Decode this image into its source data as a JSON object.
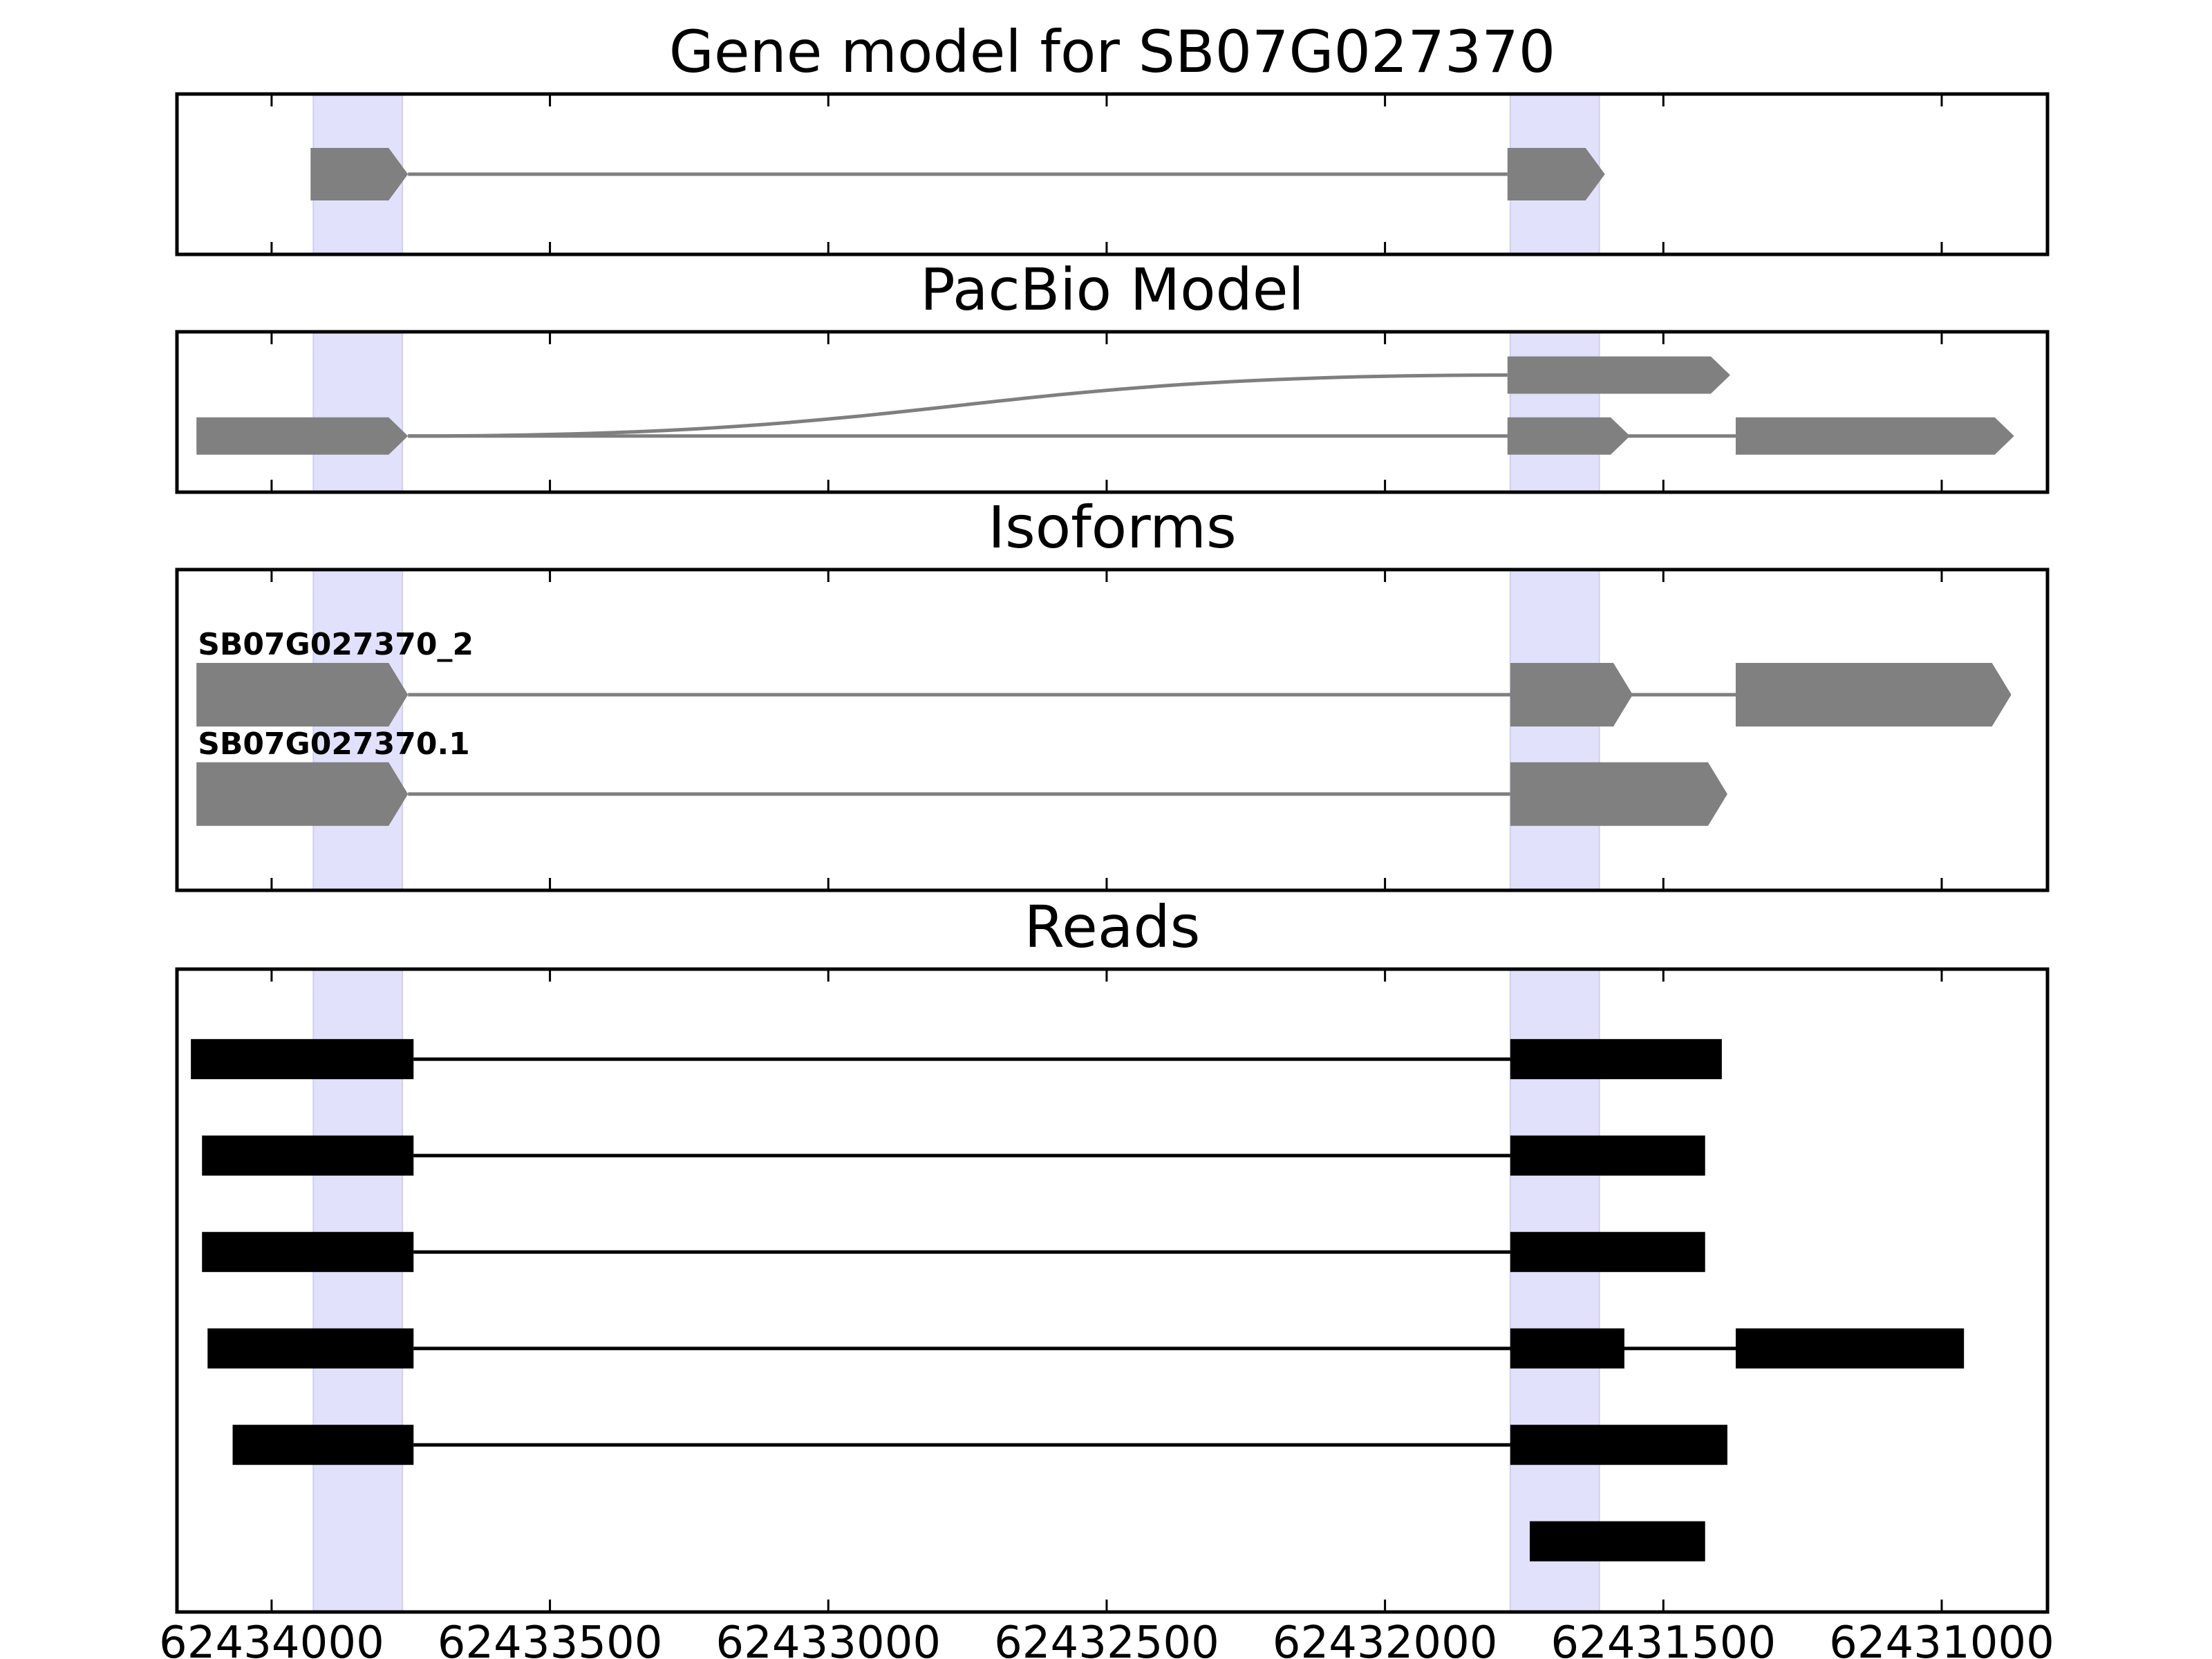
{
  "chart_data": {
    "type": "gene-structure",
    "x_axis": {
      "range": [
        62434170,
        62430810
      ],
      "reversed": true,
      "ticks": [
        62434000,
        62433500,
        62433000,
        62432500,
        62432000,
        62431500,
        62431000
      ],
      "tick_labels": [
        "62434000",
        "62433500",
        "62433000",
        "62432500",
        "62432000",
        "62431500",
        "62431000"
      ]
    },
    "highlight_regions": [
      {
        "start": 62433925,
        "end": 62433765
      },
      {
        "start": 62431775,
        "end": 62431615
      }
    ],
    "panels": [
      {
        "id": "gene-model",
        "title": "Gene model for SB07G027370",
        "tracks": [
          {
            "label": "",
            "y": 0.5,
            "exons": [
              [
                62433930,
                62433755
              ],
              [
                62431780,
                62431605
              ]
            ]
          }
        ]
      },
      {
        "id": "pacbio-model",
        "title": "PacBio Model",
        "tracks": [
          {
            "label": "",
            "y": 0.27,
            "exons": [
              [
                62431780,
                62431380
              ]
            ],
            "curve_from": 62433755
          },
          {
            "label": "",
            "y": 0.65,
            "exons": [
              [
                62434135,
                62433755
              ],
              [
                62431780,
                62431560
              ],
              [
                62431370,
                62430870
              ]
            ]
          }
        ]
      },
      {
        "id": "isoforms",
        "title": "Isoforms",
        "tracks": [
          {
            "label": "SB07G027370_2",
            "y": 0.39,
            "exons": [
              [
                62434135,
                62433755
              ],
              [
                62431775,
                62431555
              ],
              [
                62431370,
                62430875
              ]
            ]
          },
          {
            "label": "SB07G027370.1",
            "y": 0.7,
            "exons": [
              [
                62434135,
                62433755
              ],
              [
                62431775,
                62431385
              ]
            ]
          }
        ]
      },
      {
        "id": "reads",
        "title": "Reads",
        "tracks": [
          {
            "y": 0.14,
            "exons": [
              [
                62434145,
                62433745
              ],
              [
                62431775,
                62431395
              ]
            ]
          },
          {
            "y": 0.29,
            "exons": [
              [
                62434125,
                62433745
              ],
              [
                62431775,
                62431425
              ]
            ]
          },
          {
            "y": 0.44,
            "exons": [
              [
                62434125,
                62433745
              ],
              [
                62431775,
                62431425
              ]
            ]
          },
          {
            "y": 0.59,
            "exons": [
              [
                62434115,
                62433745
              ],
              [
                62431775,
                62431570
              ],
              [
                62431370,
                62430960
              ]
            ]
          },
          {
            "y": 0.74,
            "exons": [
              [
                62434070,
                62433745
              ],
              [
                62431775,
                62431385
              ]
            ]
          },
          {
            "y": 0.89,
            "exons": [
              [
                62431740,
                62431425
              ]
            ]
          }
        ]
      }
    ]
  }
}
